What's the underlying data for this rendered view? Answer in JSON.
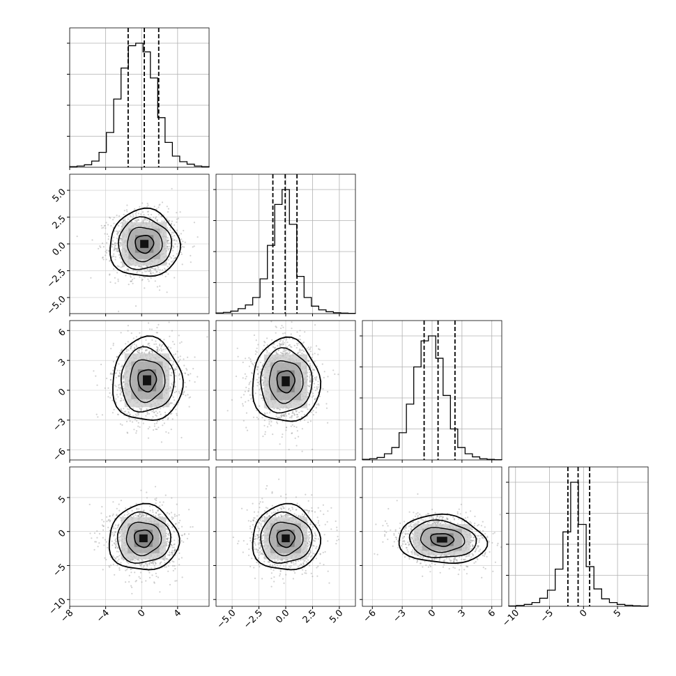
{
  "chart_data": {
    "type": "corner",
    "n_params": 4,
    "grid": true,
    "params": [
      {
        "range": [
          -8,
          7.5
        ],
        "ticks": [
          -8,
          -4,
          0,
          4
        ],
        "tick_labels": [
          "−8",
          "−4",
          "0",
          "4"
        ],
        "quantiles": [
          -1.5,
          0.3,
          1.9
        ],
        "hist": [
          0.005,
          0.01,
          0.02,
          0.05,
          0.12,
          0.28,
          0.55,
          0.8,
          0.98,
          1.0,
          0.93,
          0.72,
          0.4,
          0.2,
          0.09,
          0.045,
          0.025,
          0.01,
          0.005
        ]
      },
      {
        "range": [
          -6.5,
          6.5
        ],
        "ticks": [
          -5,
          -2.5,
          0,
          2.5,
          5
        ],
        "tick_labels": [
          "−5.0",
          "−2.5",
          "0.0",
          "2.5",
          "5.0"
        ],
        "quantiles": [
          -1.2,
          -0.05,
          1.05
        ],
        "hist": [
          0.005,
          0.01,
          0.02,
          0.04,
          0.07,
          0.13,
          0.28,
          0.55,
          0.88,
          1.0,
          0.72,
          0.3,
          0.13,
          0.06,
          0.03,
          0.015,
          0.007,
          0.004,
          0.002
        ]
      },
      {
        "range": [
          -7,
          7
        ],
        "ticks": [
          -6,
          -3,
          0,
          3,
          6
        ],
        "tick_labels": [
          "−6",
          "−3",
          "0",
          "3",
          "6"
        ],
        "quantiles": [
          -0.8,
          0.6,
          2.3
        ],
        "hist": [
          0.005,
          0.01,
          0.02,
          0.05,
          0.1,
          0.22,
          0.45,
          0.75,
          0.96,
          1.0,
          0.82,
          0.52,
          0.25,
          0.1,
          0.05,
          0.025,
          0.01,
          0.005,
          0.002
        ]
      },
      {
        "range": [
          -11,
          9.5
        ],
        "ticks": [
          -10,
          -5,
          0,
          5
        ],
        "tick_labels": [
          "−10",
          "−5",
          "0",
          "5"
        ],
        "quantiles": [
          -2.3,
          -0.8,
          0.9
        ],
        "hist": [
          0.003,
          0.007,
          0.015,
          0.03,
          0.065,
          0.13,
          0.3,
          0.6,
          1.0,
          0.66,
          0.32,
          0.14,
          0.06,
          0.03,
          0.015,
          0.008,
          0.004,
          0.002
        ]
      }
    ],
    "pairs": [
      {
        "row": 1,
        "col": 0,
        "center": [
          0.3,
          0.0
        ],
        "sigma": [
          1.85,
          1.5
        ],
        "rho": 0.0
      },
      {
        "row": 2,
        "col": 0,
        "center": [
          0.6,
          1.0
        ],
        "sigma": [
          1.85,
          2.0
        ],
        "rho": 0.0
      },
      {
        "row": 2,
        "col": 1,
        "center": [
          0.0,
          0.9
        ],
        "sigma": [
          1.5,
          2.0
        ],
        "rho": 0.0
      },
      {
        "row": 3,
        "col": 0,
        "center": [
          0.2,
          -1.0
        ],
        "sigma": [
          1.85,
          2.3
        ],
        "rho": 0.0
      },
      {
        "row": 3,
        "col": 1,
        "center": [
          0.0,
          -1.0
        ],
        "sigma": [
          1.5,
          2.3
        ],
        "rho": 0.0
      },
      {
        "row": 3,
        "col": 2,
        "center": [
          1.0,
          -1.2
        ],
        "sigma": [
          2.1,
          1.7
        ],
        "rho": -0.1
      }
    ]
  }
}
